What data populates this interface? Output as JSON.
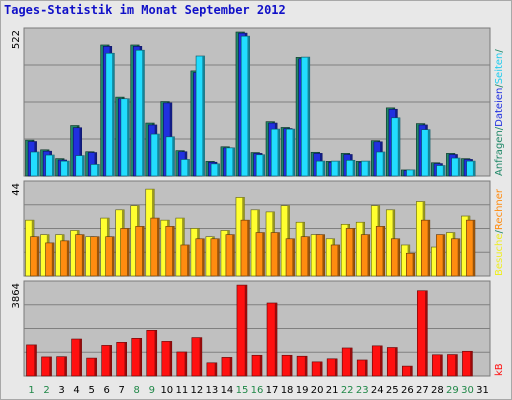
{
  "title": "Tages-Statistik im Monat September 2012",
  "colors": {
    "panel_bg": "#c0c0c0",
    "frame_bg": "#e8e8e8",
    "gridline": "#808080",
    "title": "#1010c8",
    "anfragen": "#208868",
    "dateien": "#2030e0",
    "seiten": "#22ddff",
    "besuche": "#ffff30",
    "rechner": "#ff8c10",
    "kb": "#ff1010",
    "weekend_label": "#208848",
    "weekday_label": "#000000"
  },
  "chart_data": [
    {
      "type": "bar",
      "panel": "top",
      "ytick": "522",
      "ymax": 522,
      "categories": [
        "1",
        "2",
        "3",
        "4",
        "5",
        "6",
        "7",
        "8",
        "9",
        "10",
        "11",
        "12",
        "13",
        "14",
        "15",
        "16",
        "17",
        "18",
        "19",
        "20",
        "21",
        "22",
        "23",
        "24",
        "25",
        "26",
        "27",
        "28",
        "29",
        "30",
        "31"
      ],
      "series": [
        {
          "name": "Anfragen",
          "values": [
            130,
            95,
            63,
            183,
            88,
            475,
            286,
            475,
            192,
            270,
            92,
            381,
            53,
            106,
            522,
            85,
            197,
            176,
            430,
            86,
            53,
            82,
            53,
            128,
            247,
            22,
            190,
            48,
            82,
            63,
            0
          ]
        },
        {
          "name": "Dateien",
          "values": [
            125,
            90,
            58,
            175,
            85,
            470,
            280,
            470,
            185,
            265,
            88,
            375,
            50,
            102,
            518,
            82,
            192,
            172,
            425,
            82,
            50,
            78,
            50,
            124,
            242,
            20,
            185,
            45,
            78,
            60,
            0
          ]
        },
        {
          "name": "Seiten",
          "values": [
            87,
            76,
            54,
            74,
            42,
            445,
            280,
            456,
            152,
            142,
            60,
            435,
            44,
            102,
            507,
            77,
            170,
            170,
            431,
            54,
            54,
            57,
            54,
            87,
            211,
            22,
            168,
            38,
            65,
            54,
            0
          ]
        }
      ]
    },
    {
      "type": "bar",
      "panel": "middle",
      "ytick": "44",
      "ymax": 44,
      "categories": [
        "1",
        "2",
        "3",
        "4",
        "5",
        "6",
        "7",
        "8",
        "9",
        "10",
        "11",
        "12",
        "13",
        "14",
        "15",
        "16",
        "17",
        "18",
        "19",
        "20",
        "21",
        "22",
        "23",
        "24",
        "25",
        "26",
        "27",
        "28",
        "29",
        "30",
        "31"
      ],
      "series": [
        {
          "name": "Besuche",
          "values": [
            27,
            20,
            20,
            22,
            19,
            28,
            32,
            34,
            42,
            27,
            28,
            23,
            19,
            22,
            38,
            32,
            31,
            34,
            26,
            20,
            18,
            25,
            26,
            34,
            32,
            15,
            36,
            14,
            21,
            29,
            0
          ]
        },
        {
          "name": "Rechner",
          "values": [
            19,
            16,
            17,
            20,
            19,
            19,
            23,
            24,
            28,
            24,
            15,
            18,
            18,
            20,
            27,
            21,
            21,
            18,
            19,
            20,
            15,
            23,
            20,
            24,
            18,
            11,
            27,
            20,
            18,
            27,
            0
          ]
        }
      ]
    },
    {
      "type": "bar",
      "panel": "bottom",
      "ytick": "3864",
      "ymax": 3864,
      "categories": [
        "1",
        "2",
        "3",
        "4",
        "5",
        "6",
        "7",
        "8",
        "9",
        "10",
        "11",
        "12",
        "13",
        "14",
        "15",
        "16",
        "17",
        "18",
        "19",
        "20",
        "21",
        "22",
        "23",
        "24",
        "25",
        "26",
        "27",
        "28",
        "29",
        "30",
        "31"
      ],
      "series": [
        {
          "name": "kB",
          "values": [
            1320,
            810,
            820,
            1570,
            760,
            1300,
            1430,
            1600,
            1940,
            1470,
            1020,
            1630,
            560,
            790,
            3860,
            880,
            3100,
            880,
            840,
            600,
            730,
            1190,
            680,
            1280,
            1210,
            420,
            3620,
            900,
            910,
            1050,
            0
          ]
        }
      ]
    }
  ],
  "x_labels": [
    {
      "text": "1",
      "weekend": true
    },
    {
      "text": "2",
      "weekend": true
    },
    {
      "text": "3",
      "weekend": false
    },
    {
      "text": "4",
      "weekend": false
    },
    {
      "text": "5",
      "weekend": false
    },
    {
      "text": "6",
      "weekend": false
    },
    {
      "text": "7",
      "weekend": false
    },
    {
      "text": "8",
      "weekend": true
    },
    {
      "text": "9",
      "weekend": true
    },
    {
      "text": "10",
      "weekend": false
    },
    {
      "text": "11",
      "weekend": false
    },
    {
      "text": "12",
      "weekend": false
    },
    {
      "text": "13",
      "weekend": false
    },
    {
      "text": "14",
      "weekend": false
    },
    {
      "text": "15",
      "weekend": true
    },
    {
      "text": "16",
      "weekend": true
    },
    {
      "text": "17",
      "weekend": false
    },
    {
      "text": "18",
      "weekend": false
    },
    {
      "text": "19",
      "weekend": false
    },
    {
      "text": "20",
      "weekend": false
    },
    {
      "text": "21",
      "weekend": false
    },
    {
      "text": "22",
      "weekend": true
    },
    {
      "text": "23",
      "weekend": true
    },
    {
      "text": "24",
      "weekend": false
    },
    {
      "text": "25",
      "weekend": false
    },
    {
      "text": "26",
      "weekend": false
    },
    {
      "text": "27",
      "weekend": false
    },
    {
      "text": "28",
      "weekend": false
    },
    {
      "text": "29",
      "weekend": true
    },
    {
      "text": "30",
      "weekend": true
    },
    {
      "text": "31",
      "weekend": false
    }
  ],
  "side_legend": {
    "top": [
      {
        "text": "Anfragen",
        "color": "#208868"
      },
      {
        "text": "/",
        "color": "#208868"
      },
      {
        "text": "Dateien",
        "color": "#2030e0"
      },
      {
        "text": "/",
        "color": "#208868"
      },
      {
        "text": "Seiten",
        "color": "#22ccee"
      },
      {
        "text": "/",
        "color": "#208868"
      }
    ],
    "middle": [
      {
        "text": "Besuche",
        "color": "#eeee20"
      },
      {
        "text": "/",
        "color": "#208868"
      },
      {
        "text": "Rechner",
        "color": "#ff8c10"
      }
    ],
    "bottom": [
      {
        "text": "kB",
        "color": "#ff1010"
      }
    ]
  }
}
